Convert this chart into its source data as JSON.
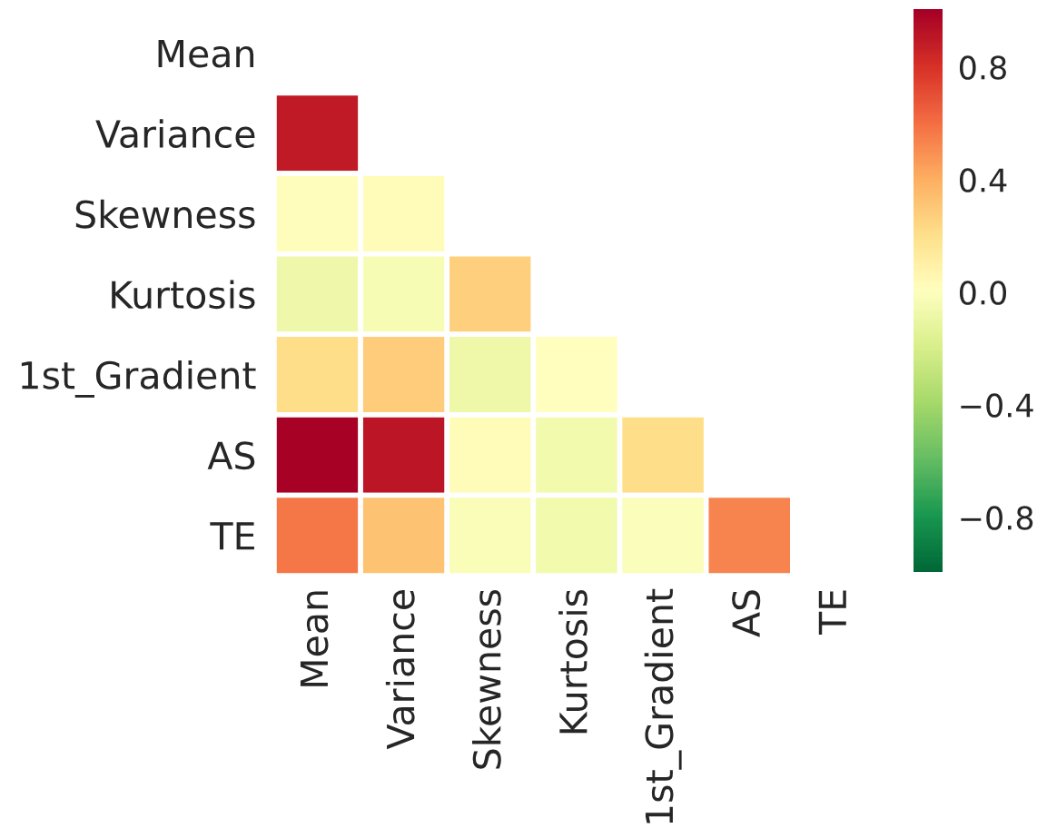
{
  "chart_data": {
    "type": "heatmap",
    "categories": [
      "Mean",
      "Variance",
      "Skewness",
      "Kurtosis",
      "1st_Gradient",
      "AS",
      "TE"
    ],
    "y_categories": [
      "Mean",
      "Variance",
      "Skewness",
      "Kurtosis",
      "1st_Gradient",
      "AS",
      "TE"
    ],
    "cells": [
      [
        null,
        null,
        null,
        null,
        null,
        null,
        null
      ],
      [
        0.89,
        null,
        null,
        null,
        null,
        null,
        null
      ],
      [
        0.01,
        0.03,
        null,
        null,
        null,
        null,
        null
      ],
      [
        -0.08,
        -0.04,
        0.26,
        null,
        null,
        null,
        null
      ],
      [
        0.21,
        0.28,
        -0.09,
        0.0,
        null,
        null,
        null
      ],
      [
        0.99,
        0.91,
        0.02,
        -0.07,
        0.21,
        null,
        null
      ],
      [
        0.57,
        0.32,
        -0.03,
        -0.07,
        -0.02,
        0.53,
        null
      ]
    ],
    "clim": [
      -1,
      1
    ],
    "cticks": [
      {
        "value": -0.8,
        "label": "−0.8"
      },
      {
        "value": -0.4,
        "label": "−0.4"
      },
      {
        "value": 0,
        "label": "0.0"
      },
      {
        "value": 0.4,
        "label": "0.4"
      },
      {
        "value": 0.8,
        "label": "0.8"
      }
    ]
  }
}
